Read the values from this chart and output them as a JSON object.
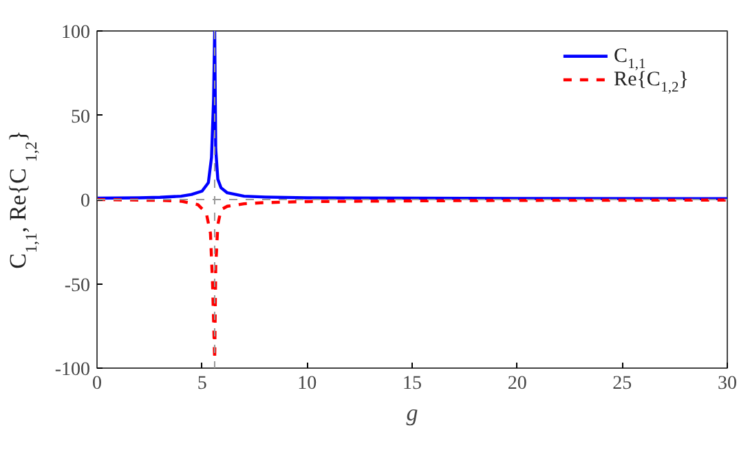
{
  "chart_data": {
    "type": "line",
    "xlabel": "g",
    "ylabel": "C$_{1,1}$,  Re{C$_{1,2}$}",
    "xlim": [
      0,
      30
    ],
    "ylim": [
      -100,
      100
    ],
    "xticks": [
      0,
      5,
      10,
      15,
      20,
      25,
      30
    ],
    "yticks": [
      -100,
      -50,
      0,
      50,
      100
    ],
    "grid": false,
    "legend": "top right",
    "ref_lines": [
      {
        "axis": "x",
        "value": 5.6,
        "color": "#999999",
        "line_style": "dashed"
      },
      {
        "axis": "y",
        "value": 0,
        "color": "#999999",
        "line_style": "dashed"
      }
    ],
    "series": [
      {
        "name": "C$_{1,1}$",
        "color": "#0000ff",
        "line_style": "solid",
        "x": [
          0,
          2,
          3,
          4,
          4.5,
          5,
          5.3,
          5.45,
          5.55,
          5.6,
          5.65,
          5.75,
          5.9,
          6.2,
          6.6,
          7,
          8,
          10,
          15,
          20,
          30
        ],
        "values": [
          0.8,
          1,
          1.3,
          2,
          3,
          5,
          10,
          25,
          60,
          100,
          30,
          12,
          7,
          4,
          3,
          2,
          1.5,
          1,
          0.8,
          0.6,
          0.5
        ]
      },
      {
        "name": "Re{C$_{1,2}$}",
        "color": "#ff0000",
        "line_style": "dashed",
        "x": [
          0,
          3,
          4,
          4.8,
          5.2,
          5.4,
          5.5,
          5.6,
          5.65,
          5.75,
          5.9,
          6.2,
          7,
          8,
          10,
          15,
          20,
          30
        ],
        "values": [
          0,
          -0.5,
          -1,
          -3,
          -8,
          -20,
          -50,
          -95,
          -40,
          -15,
          -6,
          -4,
          -2.5,
          -1.8,
          -1.2,
          -0.8,
          -0.5,
          -0.3
        ]
      }
    ]
  }
}
